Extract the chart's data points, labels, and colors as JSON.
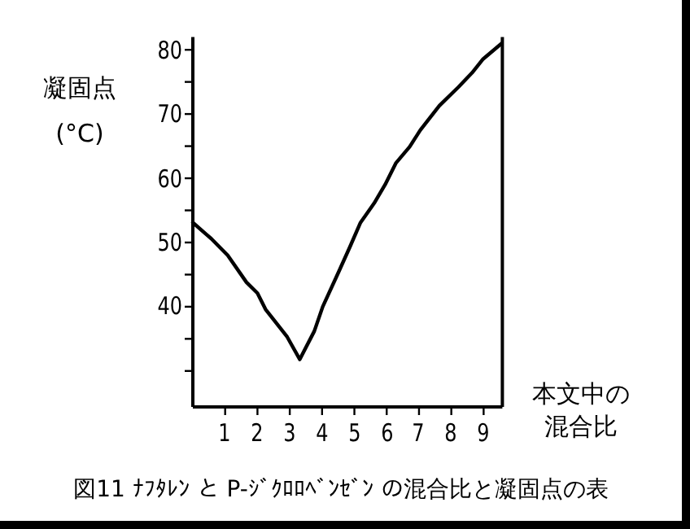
{
  "chart_data": {
    "type": "line",
    "title": "図11 ﾅﾌﾀﾚﾝ と P-ｼﾞｸﾛﾛﾍﾞﾝｾﾞﾝ の混合比と凝固点の表",
    "ylabel": "凝固点 (°C)",
    "xlabel": "本文中の混合比",
    "color": "#000000",
    "marker": "none",
    "line_style": "solid",
    "x": [
      0,
      0.57,
      1.08,
      1.66,
      2.0,
      2.25,
      2.92,
      3.31,
      3.76,
      4.02,
      4.52,
      4.86,
      5.19,
      5.61,
      5.95,
      6.29,
      6.71,
      7.04,
      7.63,
      8.22,
      8.64,
      8.97,
      9.56
    ],
    "values": [
      53.1,
      50.6,
      48.0,
      43.8,
      42.1,
      39.6,
      35.3,
      31.8,
      36.2,
      40.0,
      45.5,
      49.3,
      53.1,
      56.1,
      59.0,
      62.4,
      64.9,
      67.5,
      71.3,
      74.2,
      76.4,
      78.5,
      81.0
    ],
    "xlim": [
      0,
      9.58
    ],
    "ylim": [
      24.4,
      82
    ],
    "xticks": [
      1,
      2,
      3,
      4,
      5,
      6,
      7,
      8,
      9
    ],
    "yticks": [
      {
        "value": 30,
        "label": null
      },
      {
        "value": 35,
        "label": null
      },
      40,
      {
        "value": 45,
        "label": null
      },
      50,
      {
        "value": 55,
        "label": null
      },
      60,
      {
        "value": 65,
        "label": null
      },
      70,
      {
        "value": 75,
        "label": null
      },
      80
    ]
  }
}
